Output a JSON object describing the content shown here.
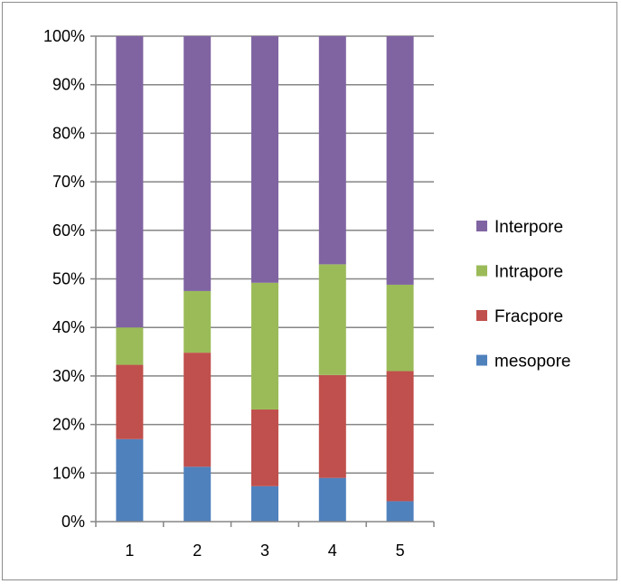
{
  "chart_data": {
    "type": "bar",
    "stacked": true,
    "percent_stacked": true,
    "categories": [
      "1",
      "2",
      "3",
      "4",
      "5"
    ],
    "series": [
      {
        "name": "mesopore",
        "color": "#4f81bd",
        "values": [
          17,
          11.3,
          7.3,
          9,
          4.2
        ]
      },
      {
        "name": "Fracpore",
        "color": "#c0504d",
        "values": [
          15.3,
          23.5,
          15.8,
          21.2,
          26.8
        ]
      },
      {
        "name": "Intrapore",
        "color": "#9bbb59",
        "values": [
          7.7,
          12.7,
          26.1,
          22.8,
          17.8
        ]
      },
      {
        "name": "Interpore",
        "color": "#8064a2",
        "values": [
          60,
          52.5,
          50.8,
          47,
          51.2
        ]
      }
    ],
    "ylim": [
      0,
      100
    ],
    "yticks": [
      "0%",
      "10%",
      "20%",
      "30%",
      "40%",
      "50%",
      "60%",
      "70%",
      "80%",
      "90%",
      "100%"
    ],
    "grid": true,
    "legend_position": "right",
    "legend_order": [
      "Interpore",
      "Intrapore",
      "Fracpore",
      "mesopore"
    ],
    "title": "",
    "xlabel": "",
    "ylabel": ""
  }
}
